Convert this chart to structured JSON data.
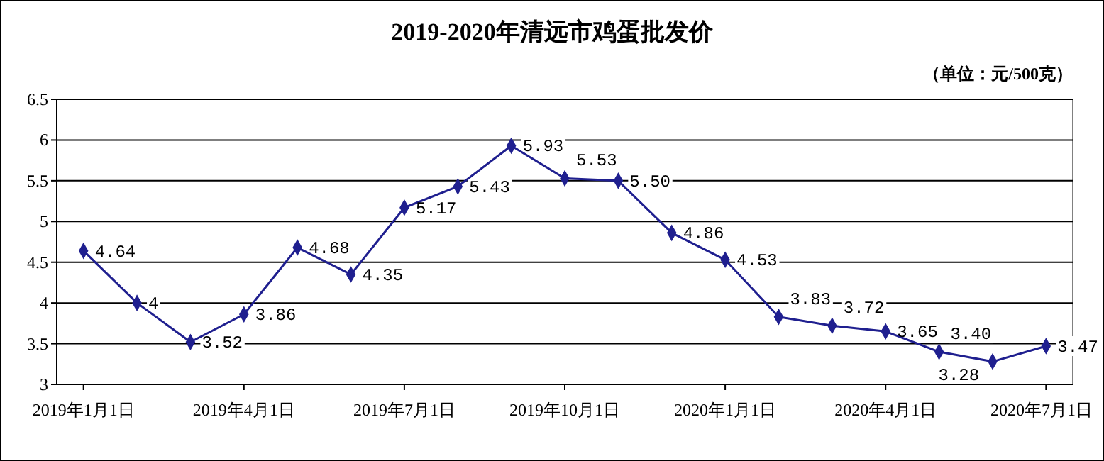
{
  "chart_data": {
    "type": "line",
    "title": "2019-2020年清远市鸡蛋批发价",
    "annotations": [
      "（单位：元/500克）"
    ],
    "categories": [
      "2019年1月1日",
      null,
      null,
      "2019年4月1日",
      null,
      null,
      "2019年7月1日",
      null,
      null,
      "2019年10月1日",
      null,
      null,
      "2020年1月1日",
      null,
      null,
      "2020年4月1日",
      null,
      null,
      "2020年7月1日"
    ],
    "series": [
      {
        "color": "#1f1f8f",
        "values": [
          4.64,
          4,
          3.52,
          3.86,
          4.68,
          4.35,
          5.17,
          5.43,
          5.93,
          5.53,
          5.5,
          4.86,
          4.53,
          3.83,
          3.72,
          3.65,
          3.4,
          3.28,
          3.47
        ],
        "value_labels": [
          "4.64",
          "4",
          "3.52",
          "3.86",
          "4.68",
          "4.35",
          "5.17",
          "5.43",
          "5.93",
          "5.53",
          "5.50",
          "4.86",
          "4.53",
          "3.83",
          "3.72",
          "3.65",
          "3.40",
          "3.28",
          "3.47"
        ]
      }
    ],
    "ylim": [
      3,
      6.5
    ],
    "yticks": [
      3,
      {
        "value": 3.5,
        "label": "3.5"
      },
      4,
      {
        "value": 4.5,
        "label": "4.5"
      },
      5,
      {
        "value": 5.5,
        "label": "5.5"
      },
      6,
      {
        "value": 6.5,
        "label": "6.5"
      }
    ],
    "grid": "y",
    "marker": "diamond"
  }
}
